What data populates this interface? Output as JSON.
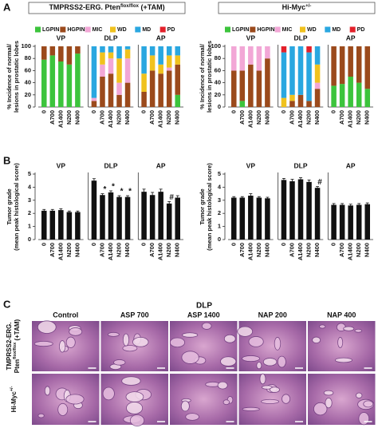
{
  "panels": [
    "A",
    "B",
    "C"
  ],
  "chart_data": [
    {
      "type": "stacked-bar",
      "title": "TMPRSS2-ERG. Pten",
      "title_sup": "flox/flox",
      "title_end": "(+TAM)",
      "ylabel": [
        "% Incidence of normal/",
        "lesions in prostatic lobes"
      ],
      "groups": [
        "VP",
        "DLP",
        "AP"
      ],
      "categories": [
        "0",
        "A700",
        "A1400",
        "N200",
        "N400",
        "0",
        "A700",
        "A1400",
        "N200",
        "N400",
        "0",
        "A700",
        "A1400",
        "N200",
        "N400"
      ],
      "series": [
        {
          "name": "LGPIN",
          "color": "#3cc43c",
          "values": [
            78,
            85,
            75,
            70,
            88,
            0,
            0,
            0,
            0,
            0,
            0,
            0,
            0,
            0,
            20
          ]
        },
        {
          "name": "HGPIN",
          "color": "#9b4a1c",
          "values": [
            22,
            15,
            25,
            30,
            12,
            10,
            50,
            55,
            20,
            40,
            25,
            60,
            55,
            60,
            50
          ]
        },
        {
          "name": "MIC",
          "color": "#f2a7d6",
          "values": [
            0,
            0,
            0,
            0,
            0,
            5,
            20,
            25,
            20,
            40,
            0,
            0,
            0,
            5,
            0
          ]
        },
        {
          "name": "WD",
          "color": "#f0c21e",
          "values": [
            0,
            0,
            0,
            0,
            0,
            0,
            20,
            10,
            40,
            15,
            30,
            25,
            15,
            20,
            15
          ]
        },
        {
          "name": "MD",
          "color": "#2aa7e0",
          "values": [
            0,
            0,
            0,
            0,
            0,
            85,
            10,
            10,
            20,
            5,
            45,
            15,
            30,
            15,
            15
          ]
        },
        {
          "name": "PD",
          "color": "#e3202a",
          "values": [
            0,
            0,
            0,
            0,
            0,
            0,
            0,
            0,
            0,
            0,
            0,
            0,
            0,
            0,
            0
          ]
        }
      ],
      "ylim": [
        0,
        100
      ],
      "yticks": [
        0,
        20,
        40,
        60,
        80,
        100
      ]
    },
    {
      "type": "stacked-bar",
      "title": "Hi-Myc",
      "title_sup": "+/-",
      "ylabel": [
        "% Incidence of normal/",
        "lesions in prostatic lobes"
      ],
      "groups": [
        "VP",
        "DLP",
        "AP"
      ],
      "categories": [
        "0",
        "A700",
        "A1400",
        "N200",
        "N400",
        "0",
        "A700",
        "A1400",
        "N200",
        "N400",
        "0",
        "A700",
        "A1400",
        "N200",
        "N400"
      ],
      "series": [
        {
          "name": "LGPIN",
          "color": "#3cc43c",
          "values": [
            0,
            10,
            0,
            0,
            0,
            0,
            0,
            0,
            0,
            0,
            35,
            38,
            50,
            40,
            30
          ]
        },
        {
          "name": "HGPIN",
          "color": "#9b4a1c",
          "values": [
            60,
            50,
            70,
            60,
            80,
            0,
            10,
            20,
            10,
            30,
            65,
            62,
            50,
            60,
            70
          ]
        },
        {
          "name": "MIC",
          "color": "#f2a7d6",
          "values": [
            40,
            40,
            30,
            40,
            20,
            0,
            0,
            0,
            0,
            10,
            0,
            0,
            0,
            0,
            0
          ]
        },
        {
          "name": "WD",
          "color": "#f0c21e",
          "values": [
            0,
            0,
            0,
            0,
            0,
            15,
            10,
            0,
            0,
            30,
            0,
            0,
            0,
            0,
            0
          ]
        },
        {
          "name": "MD",
          "color": "#2aa7e0",
          "values": [
            0,
            0,
            0,
            0,
            0,
            75,
            80,
            80,
            80,
            30,
            0,
            0,
            0,
            0,
            0
          ]
        },
        {
          "name": "PD",
          "color": "#e3202a",
          "values": [
            0,
            0,
            0,
            0,
            0,
            10,
            0,
            0,
            10,
            0,
            0,
            0,
            0,
            0,
            0
          ]
        }
      ],
      "ylim": [
        0,
        100
      ],
      "yticks": [
        0,
        20,
        40,
        60,
        80,
        100
      ]
    },
    {
      "type": "error-bar",
      "ylabel": [
        "Tumor grade",
        "(mean peak histological score)"
      ],
      "groups": [
        "VP",
        "DLP",
        "AP"
      ],
      "categories": [
        "0",
        "A700",
        "A1400",
        "N200",
        "N400",
        "0",
        "A700",
        "A1400",
        "N200",
        "N400",
        "0",
        "A700",
        "A1400",
        "N200",
        "N400"
      ],
      "color": "#111111",
      "values": [
        2.2,
        2.2,
        2.25,
        2.1,
        2.1,
        4.5,
        3.4,
        3.6,
        3.25,
        3.25,
        3.65,
        3.4,
        3.65,
        2.75,
        3.2
      ],
      "errors": [
        0.1,
        0.1,
        0.1,
        0.08,
        0.08,
        0.15,
        0.1,
        0.12,
        0.1,
        0.1,
        0.2,
        0.2,
        0.2,
        0.15,
        0.15
      ],
      "significance": [
        null,
        null,
        null,
        null,
        null,
        null,
        "*",
        "*",
        "*",
        "*",
        null,
        null,
        null,
        "#",
        null
      ],
      "ylim": [
        0,
        5
      ],
      "yticks": [
        0,
        1,
        2,
        3,
        4,
        5
      ]
    },
    {
      "type": "error-bar",
      "ylabel": [
        "Tumor grade",
        "(mean peak histological score)"
      ],
      "groups": [
        "VP",
        "DLP",
        "AP"
      ],
      "categories": [
        "0",
        "A700",
        "A1400",
        "N200",
        "N400",
        "0",
        "A700",
        "A1400",
        "N200",
        "N400",
        "0",
        "A700",
        "A1400",
        "N200",
        "N400"
      ],
      "color": "#111111",
      "values": [
        3.2,
        3.2,
        3.35,
        3.2,
        3.15,
        4.55,
        4.45,
        4.6,
        4.4,
        3.95,
        2.65,
        2.65,
        2.6,
        2.65,
        2.7
      ],
      "errors": [
        0.08,
        0.08,
        0.15,
        0.08,
        0.08,
        0.12,
        0.15,
        0.12,
        0.15,
        0.1,
        0.1,
        0.1,
        0.1,
        0.1,
        0.1
      ],
      "significance": [
        null,
        null,
        null,
        null,
        null,
        null,
        null,
        null,
        null,
        "#",
        null,
        null,
        null,
        null,
        null
      ],
      "ylim": [
        0,
        5
      ],
      "yticks": [
        0,
        1,
        2,
        3,
        4,
        5
      ]
    }
  ],
  "histology": {
    "title": "DLP",
    "columns": [
      "Control",
      "ASP 700",
      "ASP 1400",
      "NAP 200",
      "NAP 400"
    ],
    "rows": [
      {
        "line1": "TMPRSS2-ERG.",
        "line2": "Pten",
        "sup": "flox/flox",
        "end": "(+TAM)"
      },
      {
        "line1": "Hi-Myc",
        "sup": "+/-"
      }
    ]
  }
}
